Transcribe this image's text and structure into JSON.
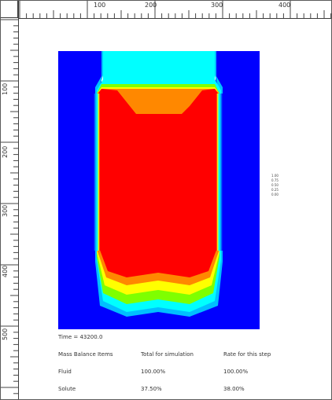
{
  "ruler": {
    "top_labels": [
      "100",
      "200",
      "300",
      "400"
    ],
    "left_labels": [
      "100",
      "200",
      "300",
      "400",
      "500"
    ]
  },
  "simulation": {
    "colors": {
      "background_region": "#0000ff",
      "fill_core": "#ff0000",
      "band_orange": "#ff8800",
      "band_yellow": "#ffff00",
      "band_green": "#7fff00",
      "band_cyan": "#00ffff",
      "band_lightblue": "#00bfff"
    },
    "legend_labels": [
      "1.00",
      "0.75",
      "0.50",
      "0.25",
      "0.00"
    ]
  },
  "report": {
    "time_label": "Time = 43200.0",
    "header": [
      "Mass Balance Items",
      "Total for simulation",
      "Rate for this step"
    ],
    "rows": [
      [
        "Fluid",
        "100.00%",
        "100.00%"
      ],
      [
        "Solute",
        "37.50%",
        "38.00%"
      ]
    ]
  }
}
